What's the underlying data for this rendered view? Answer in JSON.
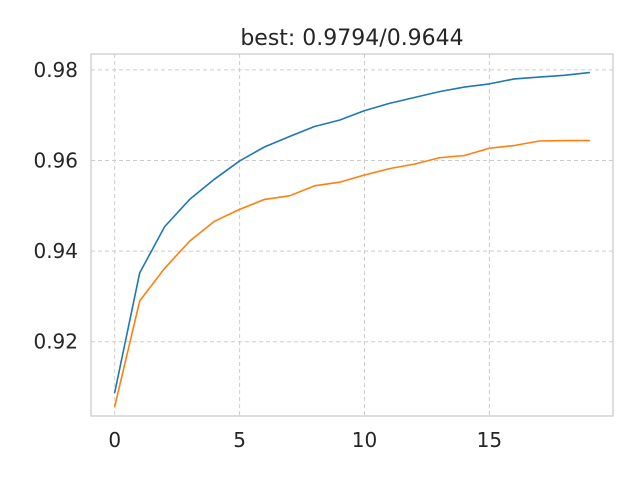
{
  "chart_data": {
    "type": "line",
    "title": "best: 0.9794/0.9644",
    "xlabel": "",
    "ylabel": "",
    "xlim": [
      -0.95,
      19.95
    ],
    "ylim": [
      0.9036,
      0.9835
    ],
    "grid": true,
    "x_ticks": [
      0,
      5,
      10,
      15
    ],
    "y_ticks": [
      0.92,
      0.94,
      0.96,
      0.98
    ],
    "x_tick_labels": [
      "0",
      "5",
      "10",
      "15"
    ],
    "y_tick_labels": [
      "0.92",
      "0.94",
      "0.96",
      "0.98"
    ],
    "x": [
      0,
      1,
      2,
      3,
      4,
      5,
      6,
      7,
      8,
      9,
      10,
      11,
      12,
      13,
      14,
      15,
      16,
      17,
      18,
      19
    ],
    "series": [
      {
        "color": "#1f77b4",
        "values": [
          0.9088,
          0.9352,
          0.9454,
          0.9514,
          0.9559,
          0.9599,
          0.963,
          0.9653,
          0.9675,
          0.9689,
          0.971,
          0.9726,
          0.9739,
          0.9752,
          0.9762,
          0.9769,
          0.978,
          0.9784,
          0.9788,
          0.9794
        ]
      },
      {
        "color": "#ff7f0e",
        "values": [
          0.9057,
          0.929,
          0.9362,
          0.9422,
          0.9466,
          0.9492,
          0.9514,
          0.9522,
          0.9544,
          0.9552,
          0.9568,
          0.9582,
          0.9592,
          0.9606,
          0.9611,
          0.9627,
          0.9633,
          0.9643,
          0.9644,
          0.9644
        ]
      }
    ]
  }
}
